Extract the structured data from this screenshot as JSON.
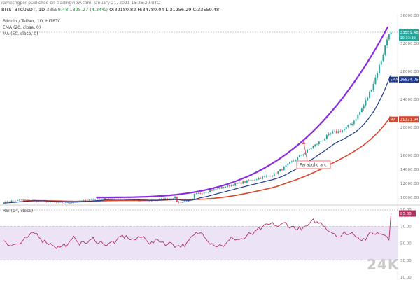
{
  "header": {
    "top_line": "rameshgper published on tradingview.com, January 21, 2021 15:26:20 UTC",
    "symbol": "BITSTBTCUSDT, 1D",
    "price_open": "33559.48",
    "change_abs": "1395.27",
    "change_pct": "(4.34%)",
    "ohlc": "O:32180.82 H:34780.04 L:31956.29 C:33559.48"
  },
  "legend": {
    "title": "Bitcoin / Tether, 1D, HITBTC",
    "ema": "EMA (20, close, 0)",
    "ma": "MA (50, close, 0)"
  },
  "price_tags": {
    "last": "33559.48",
    "last_sub": "10:33:39",
    "ema": "26834.05",
    "sma": "21131.94"
  },
  "annotation": {
    "label": "Parabolic arc"
  },
  "rsi": {
    "legend": "RSI (14, close)",
    "tag": "85.00"
  },
  "watermark": "24K",
  "colors": {
    "up": "#26a69a",
    "down": "#ef5350",
    "ema": "#1f3c8f",
    "sma": "#d9442c",
    "arc": "#8a2be2",
    "rsi": "#b03060",
    "rsi_band": "#ece3f7"
  },
  "chart_data": [
    {
      "type": "candlestick",
      "title": "Bitcoin / Tether, 1D, HITBTC",
      "y_axis_ticks": [
        "36000.00",
        "32000.00",
        "28000.00",
        "24000.00",
        "20000.00",
        "16000.00",
        "14000.00",
        "12000.00",
        "10000.00"
      ],
      "series": [
        {
          "name": "EMA (20, close, 0)",
          "last": 26834.05
        },
        {
          "name": "MA (50, close, 0)",
          "last": 21131.94
        }
      ],
      "last_close": 33559.48,
      "annotation": "Parabolic arc"
    },
    {
      "type": "line",
      "title": "RSI (14, close)",
      "y_axis_ticks": [
        "90.00",
        "70.00",
        "50.00",
        "30.00",
        "10.00"
      ],
      "band": [
        30,
        70
      ],
      "last": 85.0
    }
  ]
}
